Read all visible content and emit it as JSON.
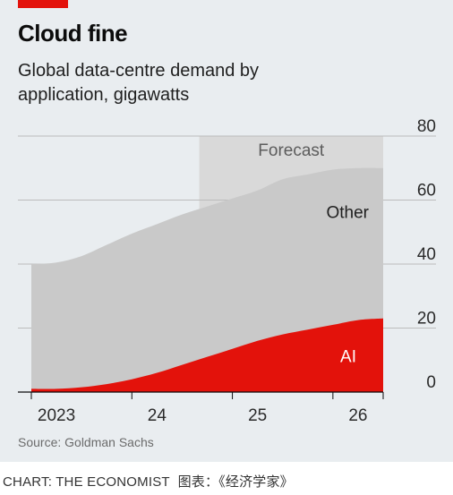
{
  "title": "Cloud fine",
  "subtitle": "Global data-centre demand by application, gigawatts",
  "source": "Source: Goldman Sachs",
  "credit": "CHART: THE ECONOMIST",
  "credit_note": "图表：《经济学家》",
  "colors": {
    "background": "#e9edf0",
    "other": "#c9c9c9",
    "ai": "#e3120b",
    "forecast_band": "#d9d9d9",
    "accent": "#e3120b"
  },
  "chart_data": {
    "type": "area",
    "stacked": true,
    "x": [
      2023.0,
      2023.25,
      2023.5,
      2023.75,
      2024.0,
      2024.25,
      2024.5,
      2024.75,
      2025.0,
      2025.25,
      2025.5,
      2025.75,
      2026.0,
      2026.25,
      2026.5
    ],
    "series": [
      {
        "name": "AI",
        "values": [
          1,
          1,
          1.5,
          2.5,
          4,
          6,
          8.5,
          11,
          13.5,
          16,
          18,
          19.5,
          21,
          22.5,
          23
        ]
      },
      {
        "name": "Other",
        "values": [
          39,
          39.5,
          41,
          43.5,
          45.5,
          46.5,
          47,
          47,
          47,
          47,
          48.5,
          48.5,
          48.5,
          47.5,
          47
        ]
      }
    ],
    "xlim": [
      2023.0,
      2026.5
    ],
    "ylim": [
      0,
      80
    ],
    "yticks": [
      0,
      20,
      40,
      60,
      80
    ],
    "xticks": [
      {
        "value": 2023.25,
        "label": "2023"
      },
      {
        "value": 2024.25,
        "label": "24"
      },
      {
        "value": 2025.25,
        "label": "25"
      },
      {
        "value": 2026.25,
        "label": "26"
      }
    ],
    "forecast": {
      "start": 2024.67,
      "end": 2026.5,
      "label": "Forecast"
    },
    "axis_side": "right",
    "grid": true
  }
}
